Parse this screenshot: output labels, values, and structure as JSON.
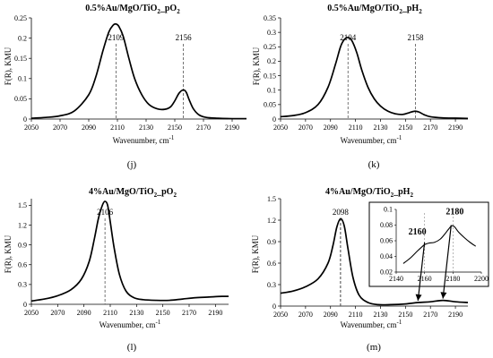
{
  "chart_data": [
    {
      "id": "j",
      "type": "line",
      "panel_label": "(j)",
      "title_main": "0.5%Au/MgO/TiO",
      "title_sub": "2",
      "title_tail": "_pO",
      "title_sub2": "2",
      "xlabel": "Wavenumber, cm",
      "xlabel_sup": "-1",
      "ylabel": "F(R), KMU",
      "xlim": [
        2050,
        2200
      ],
      "ylim": [
        0,
        0.25
      ],
      "xticks": [
        "2050",
        "2070",
        "2090",
        "2110",
        "2130",
        "2150",
        "2170",
        "2190"
      ],
      "yticks": [
        "0",
        "0.05",
        "0.1",
        "0.15",
        "0.2",
        "0.25"
      ],
      "peaks": [
        {
          "x": 2109,
          "label": "2109"
        },
        {
          "x": 2156,
          "label": "2156"
        }
      ],
      "x": [
        2050,
        2060,
        2070,
        2080,
        2090,
        2095,
        2100,
        2104,
        2107,
        2109,
        2111,
        2114,
        2118,
        2122,
        2127,
        2132,
        2138,
        2143,
        2147,
        2150,
        2153,
        2156,
        2158,
        2160,
        2163,
        2167,
        2172,
        2180,
        2190,
        2200
      ],
      "y": [
        0.002,
        0.004,
        0.008,
        0.02,
        0.06,
        0.105,
        0.17,
        0.215,
        0.232,
        0.235,
        0.229,
        0.205,
        0.15,
        0.1,
        0.06,
        0.036,
        0.025,
        0.024,
        0.03,
        0.045,
        0.064,
        0.072,
        0.066,
        0.048,
        0.025,
        0.01,
        0.004,
        0.002,
        0.001,
        0.001
      ]
    },
    {
      "id": "k",
      "type": "line",
      "panel_label": "(k)",
      "title_main": "0.5%Au/MgO/TiO",
      "title_sub": "2",
      "title_tail": "_pH",
      "title_sub2": "2",
      "xlabel": "Wavenumber, cm",
      "xlabel_sup": "-1",
      "ylabel": "F(R), KMU",
      "xlim": [
        2050,
        2200
      ],
      "ylim": [
        0,
        0.35
      ],
      "xticks": [
        "2050",
        "2070",
        "2090",
        "2110",
        "2130",
        "2150",
        "2170",
        "2190"
      ],
      "yticks": [
        "0",
        "0.05",
        "0.1",
        "0.15",
        "0.2",
        "0.25",
        "0.3",
        "0.35"
      ],
      "peaks": [
        {
          "x": 2104,
          "label": "2104"
        },
        {
          "x": 2158,
          "label": "2158"
        }
      ],
      "x": [
        2050,
        2060,
        2070,
        2080,
        2088,
        2094,
        2098,
        2101,
        2104,
        2107,
        2111,
        2115,
        2120,
        2125,
        2130,
        2136,
        2142,
        2148,
        2153,
        2156,
        2158,
        2161,
        2165,
        2170,
        2180,
        2190,
        2200
      ],
      "y": [
        0.008,
        0.012,
        0.022,
        0.05,
        0.11,
        0.19,
        0.25,
        0.275,
        0.282,
        0.272,
        0.23,
        0.17,
        0.11,
        0.07,
        0.045,
        0.027,
        0.018,
        0.016,
        0.022,
        0.026,
        0.027,
        0.024,
        0.015,
        0.008,
        0.004,
        0.003,
        0.002
      ]
    },
    {
      "id": "l",
      "type": "line",
      "panel_label": "(l)",
      "title_main": "4%Au/MgO/TiO",
      "title_sub": "2",
      "title_tail": "_pO",
      "title_sub2": "2",
      "xlabel": "Wavenumber, cm",
      "xlabel_sup": "-1",
      "ylabel": "F(R), KMU",
      "xlim": [
        2050,
        2200
      ],
      "ylim": [
        0,
        1.6
      ],
      "xticks": [
        "2050",
        "2070",
        "2090",
        "2110",
        "2130",
        "2150",
        "2170",
        "2190"
      ],
      "yticks": [
        "0",
        "0.3",
        "0.6",
        "0.9",
        "1.2",
        "1.5"
      ],
      "peaks": [
        {
          "x": 2106,
          "label": "2106"
        }
      ],
      "x": [
        2050,
        2060,
        2070,
        2080,
        2088,
        2094,
        2098,
        2101,
        2104,
        2106,
        2108,
        2110,
        2113,
        2117,
        2122,
        2128,
        2135,
        2145,
        2155,
        2165,
        2175,
        2185,
        2195,
        2200
      ],
      "y": [
        0.05,
        0.08,
        0.13,
        0.22,
        0.38,
        0.65,
        1.0,
        1.3,
        1.5,
        1.56,
        1.5,
        1.25,
        0.85,
        0.45,
        0.2,
        0.1,
        0.07,
        0.06,
        0.06,
        0.08,
        0.1,
        0.11,
        0.12,
        0.12
      ]
    },
    {
      "id": "m",
      "type": "line",
      "panel_label": "(m)",
      "title_main": "4%Au/MgO/TiO",
      "title_sub": "2",
      "title_tail": "_pH",
      "title_sub2": "2",
      "xlabel": "Wavenumber, cm",
      "xlabel_sup": "-1",
      "ylabel": "F(R), KMU",
      "xlim": [
        2050,
        2200
      ],
      "ylim": [
        0,
        1.5
      ],
      "xticks": [
        "2050",
        "2070",
        "2090",
        "2110",
        "2130",
        "2150",
        "2170",
        "2190"
      ],
      "yticks": [
        "0",
        "0.3",
        "0.6",
        "0.9",
        "1.2",
        "1.5"
      ],
      "peaks": [
        {
          "x": 2098,
          "label": "2098"
        }
      ],
      "x": [
        2050,
        2060,
        2070,
        2080,
        2088,
        2092,
        2095,
        2098,
        2101,
        2104,
        2108,
        2113,
        2120,
        2128,
        2138,
        2150,
        2160,
        2170,
        2180,
        2190,
        2200
      ],
      "y": [
        0.18,
        0.21,
        0.27,
        0.38,
        0.6,
        0.85,
        1.1,
        1.22,
        1.12,
        0.8,
        0.4,
        0.15,
        0.05,
        0.02,
        0.02,
        0.03,
        0.05,
        0.06,
        0.08,
        0.06,
        0.05
      ],
      "inset": {
        "xlim": [
          2140,
          2200
        ],
        "ylim": [
          0.02,
          0.1
        ],
        "xticks": [
          "2140",
          "2160",
          "2180",
          "2200"
        ],
        "yticks": [
          "0.02",
          "0.04",
          "0.06",
          "0.08",
          "0.1"
        ],
        "peaks": [
          {
            "x": 2160,
            "label": "2160"
          },
          {
            "x": 2180,
            "label": "2180"
          }
        ],
        "x": [
          2145,
          2150,
          2155,
          2158,
          2160,
          2163,
          2167,
          2171,
          2174,
          2177,
          2179,
          2181,
          2184,
          2188,
          2192,
          2196
        ],
        "y": [
          0.031,
          0.038,
          0.047,
          0.052,
          0.055,
          0.057,
          0.058,
          0.062,
          0.068,
          0.075,
          0.079,
          0.078,
          0.071,
          0.064,
          0.058,
          0.053
        ]
      }
    }
  ]
}
